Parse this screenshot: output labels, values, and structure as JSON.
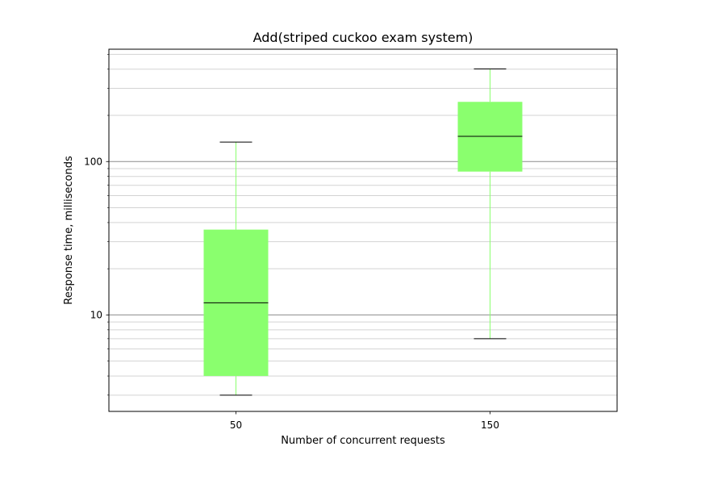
{
  "chart_data": {
    "type": "boxplot",
    "title": "Add(striped cuckoo exam system)",
    "xlabel": "Number of concurrent requests",
    "ylabel": "Response time, milliseconds",
    "yscale": "log",
    "ylim": [
      2.35,
      540
    ],
    "categories": [
      "50",
      "150"
    ],
    "y_ticks": [
      {
        "value": 10,
        "label": "10"
      },
      {
        "value": 100,
        "label": "100"
      }
    ],
    "grid": "y (major and minor)",
    "colors": {
      "box_fill": "#8aff6e",
      "whisker": "#8aff6e",
      "median": "#000000",
      "cap": "#000000",
      "major_grid": "#8c8c8c",
      "minor_grid": "#d3d3d3"
    },
    "series": [
      {
        "category": "50",
        "whislo": 3.0,
        "q1": 4.0,
        "median": 12.0,
        "q3": 36.0,
        "whishi": 134.0
      },
      {
        "category": "150",
        "whislo": 7.0,
        "q1": 86.0,
        "median": 146.0,
        "q3": 245.0,
        "whishi": 402.0
      }
    ]
  }
}
